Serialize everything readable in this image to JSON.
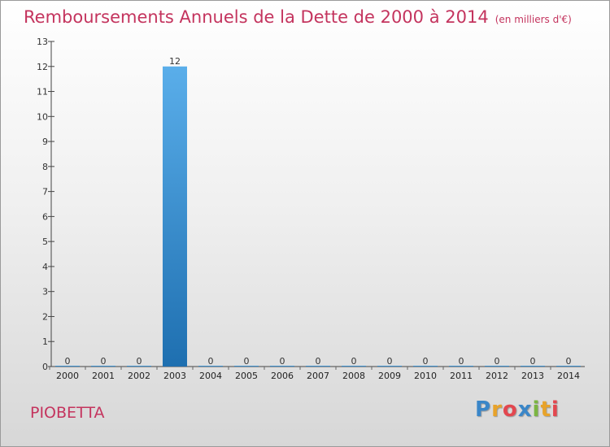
{
  "title": "Remboursements Annuels de la Dette de 2000 à 2014",
  "unit_note": "(en milliers d'€)",
  "commune": "PIOBETTA",
  "logo": {
    "letters": [
      "P",
      "r",
      "o",
      "x",
      "i",
      "t",
      "i"
    ],
    "colors": [
      "#3a86c8",
      "#e8a32a",
      "#e3474f",
      "#3a86c8",
      "#7bb542",
      "#e8a32a",
      "#e3474f"
    ]
  },
  "colors": {
    "title": "#c4345e",
    "bar_light": "#5aaeea",
    "bar_dark": "#1e6fb0"
  },
  "chart_data": {
    "type": "bar",
    "title": "Remboursements Annuels de la Dette de 2000 à 2014",
    "ylabel": "en milliers d'€",
    "categories": [
      "2000",
      "2001",
      "2002",
      "2003",
      "2004",
      "2005",
      "2006",
      "2007",
      "2008",
      "2009",
      "2010",
      "2011",
      "2012",
      "2013",
      "2014"
    ],
    "values": [
      0,
      0,
      0,
      12,
      0,
      0,
      0,
      0,
      0,
      0,
      0,
      0,
      0,
      0,
      0
    ],
    "ylim": [
      0,
      13
    ],
    "yticks": [
      0,
      1,
      2,
      3,
      4,
      5,
      6,
      7,
      8,
      9,
      10,
      11,
      12,
      13
    ],
    "grid": false
  }
}
